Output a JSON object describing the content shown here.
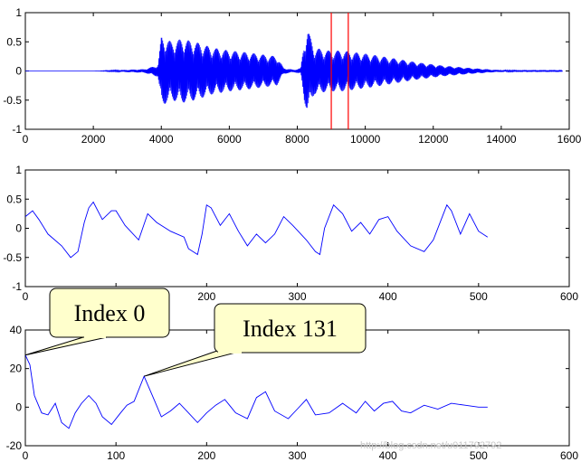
{
  "chart_data": [
    {
      "type": "line",
      "xlim": [
        0,
        16000
      ],
      "ylim": [
        -1,
        1
      ],
      "xticks": [
        "0",
        "2000",
        "4000",
        "6000",
        "8000",
        "10000",
        "12000",
        "14000",
        "1600"
      ],
      "yticks": [
        "1",
        "0.5",
        "0",
        "-0.5",
        "-1"
      ],
      "grid": false,
      "series_color": "#0000ff",
      "marker_color": "#ff0000",
      "markers_x": [
        9000,
        9500
      ],
      "series": [
        {
          "x": [
            0,
            2000,
            3500,
            3900,
            4000,
            4300,
            4600,
            5000,
            5500,
            6000,
            6500,
            7000,
            7400,
            7600,
            7900,
            8100,
            8200,
            8300,
            8500,
            8900,
            9300,
            9700,
            10200,
            10800,
            11500,
            12300,
            13100,
            13800,
            14500,
            15800
          ],
          "y": [
            0,
            0,
            0.03,
            0.1,
            0.6,
            0.5,
            0.55,
            0.5,
            0.4,
            0.35,
            0.32,
            0.28,
            0.25,
            0.05,
            0.02,
            0.05,
            0.5,
            0.72,
            0.4,
            0.35,
            0.35,
            0.32,
            0.28,
            0.22,
            0.15,
            0.09,
            0.05,
            0.02,
            0.01,
            0.01
          ]
        }
      ]
    },
    {
      "type": "line",
      "xlim": [
        0,
        600
      ],
      "ylim": [
        -1,
        1
      ],
      "xticks": [
        "0",
        "100",
        "200",
        "300",
        "400",
        "500",
        "600"
      ],
      "yticks": [
        "1",
        "0.5",
        "0",
        "-0.5",
        "-1"
      ],
      "grid": false,
      "series_color": "#0000ff",
      "series": [
        {
          "x": [
            0,
            8,
            15,
            25,
            40,
            50,
            58,
            65,
            70,
            75,
            85,
            95,
            100,
            110,
            125,
            135,
            145,
            160,
            175,
            180,
            190,
            195,
            200,
            205,
            215,
            225,
            235,
            245,
            255,
            265,
            275,
            285,
            295,
            310,
            320,
            325,
            330,
            340,
            350,
            360,
            370,
            380,
            390,
            400,
            410,
            425,
            440,
            450,
            460,
            465,
            470,
            480,
            490,
            500,
            510
          ],
          "y": [
            0.2,
            0.3,
            0.15,
            -0.1,
            -0.3,
            -0.5,
            -0.4,
            0.1,
            0.35,
            0.45,
            0.15,
            0.3,
            0.3,
            0.05,
            -0.2,
            0.25,
            0.1,
            -0.05,
            -0.15,
            -0.35,
            -0.45,
            -0.1,
            0.4,
            0.35,
            0.05,
            0.25,
            -0.05,
            -0.3,
            -0.1,
            -0.25,
            -0.1,
            0.2,
            0.05,
            -0.2,
            -0.4,
            -0.45,
            0.0,
            0.4,
            0.25,
            -0.05,
            0.1,
            -0.1,
            0.15,
            0.2,
            -0.05,
            -0.3,
            -0.4,
            -0.2,
            0.2,
            0.4,
            0.3,
            -0.1,
            0.25,
            -0.05,
            -0.15
          ]
        }
      ]
    },
    {
      "type": "line",
      "xlim": [
        0,
        600
      ],
      "ylim": [
        -20,
        40
      ],
      "xticks": [
        "0",
        "100",
        "200",
        "300",
        "400",
        "500",
        "600"
      ],
      "yticks": [
        "40",
        "20",
        "0",
        "-20"
      ],
      "grid": false,
      "series_color": "#0000ff",
      "annotations": [
        {
          "label": "Index 0",
          "x": 0,
          "y": 27
        },
        {
          "label": "Index 131",
          "x": 131,
          "y": 16
        }
      ],
      "series": [
        {
          "x": [
            0,
            5,
            10,
            18,
            25,
            33,
            40,
            48,
            55,
            62,
            70,
            78,
            85,
            95,
            105,
            112,
            120,
            131,
            142,
            150,
            160,
            170,
            180,
            190,
            200,
            210,
            220,
            232,
            245,
            255,
            265,
            275,
            290,
            300,
            310,
            320,
            335,
            350,
            365,
            375,
            385,
            395,
            405,
            415,
            425,
            440,
            455,
            470,
            485,
            500,
            510
          ],
          "y": [
            27,
            22,
            6,
            -3,
            -4,
            2,
            -8,
            -11,
            -3,
            2,
            6,
            2,
            -5,
            -9,
            -3,
            1,
            3,
            16,
            4,
            -5,
            -2,
            2,
            -3,
            -8,
            -3,
            1,
            4,
            -3,
            -6,
            5,
            8,
            -2,
            -6,
            -1,
            4,
            -4,
            -3,
            2,
            -3,
            3,
            -2,
            2,
            3,
            -2,
            -3,
            1,
            -1,
            2,
            1,
            0,
            0
          ]
        }
      ]
    }
  ]
}
